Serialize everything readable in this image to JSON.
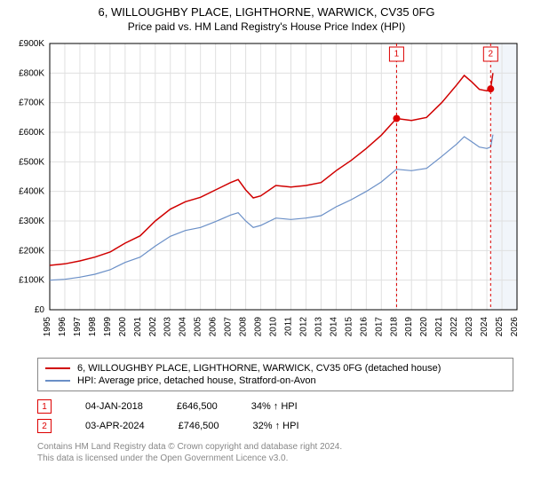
{
  "title": "6, WILLOUGHBY PLACE, LIGHTHORNE, WARWICK, CV35 0FG",
  "subtitle": "Price paid vs. HM Land Registry's House Price Index (HPI)",
  "chart": {
    "type": "line",
    "background_color": "#ffffff",
    "grid_color": "#e0e0e0",
    "axis_color": "#000000",
    "font_size_axis": 10,
    "y": {
      "min": 0,
      "max": 900000,
      "step": 100000,
      "ticks": [
        "£0",
        "£100K",
        "£200K",
        "£300K",
        "£400K",
        "£500K",
        "£600K",
        "£700K",
        "£800K",
        "£900K"
      ],
      "tick_values": [
        0,
        100000,
        200000,
        300000,
        400000,
        500000,
        600000,
        700000,
        800000,
        900000
      ]
    },
    "x": {
      "min": 1995,
      "max": 2026,
      "ticks": [
        1995,
        1996,
        1997,
        1998,
        1999,
        2000,
        2001,
        2002,
        2003,
        2004,
        2005,
        2006,
        2007,
        2008,
        2009,
        2010,
        2011,
        2012,
        2013,
        2014,
        2015,
        2016,
        2017,
        2018,
        2019,
        2020,
        2021,
        2022,
        2023,
        2024,
        2025,
        2026
      ]
    },
    "band": {
      "start": 2024.25,
      "end": 2026,
      "color": "#e8eef7"
    },
    "series": [
      {
        "id": "price_paid",
        "label": "6, WILLOUGHBY PLACE, LIGHTHORNE, WARWICK, CV35 0FG (detached house)",
        "color": "#d00000",
        "width": 1.5,
        "points": [
          [
            1995,
            150000
          ],
          [
            1996,
            155000
          ],
          [
            1997,
            165000
          ],
          [
            1998,
            178000
          ],
          [
            1999,
            195000
          ],
          [
            2000,
            225000
          ],
          [
            2001,
            250000
          ],
          [
            2002,
            300000
          ],
          [
            2003,
            340000
          ],
          [
            2004,
            365000
          ],
          [
            2005,
            380000
          ],
          [
            2006,
            405000
          ],
          [
            2007,
            430000
          ],
          [
            2007.5,
            440000
          ],
          [
            2008,
            405000
          ],
          [
            2008.5,
            378000
          ],
          [
            2009,
            385000
          ],
          [
            2010,
            420000
          ],
          [
            2011,
            415000
          ],
          [
            2012,
            420000
          ],
          [
            2013,
            430000
          ],
          [
            2014,
            470000
          ],
          [
            2015,
            505000
          ],
          [
            2016,
            545000
          ],
          [
            2017,
            590000
          ],
          [
            2018,
            646500
          ],
          [
            2019,
            640000
          ],
          [
            2020,
            650000
          ],
          [
            2021,
            700000
          ],
          [
            2022,
            760000
          ],
          [
            2022.5,
            792000
          ],
          [
            2023,
            770000
          ],
          [
            2023.5,
            745000
          ],
          [
            2024,
            740000
          ],
          [
            2024.25,
            746500
          ],
          [
            2024.4,
            800000
          ]
        ]
      },
      {
        "id": "hpi",
        "label": "HPI: Average price, detached house, Stratford-on-Avon",
        "color": "#6a8fc7",
        "width": 1.2,
        "points": [
          [
            1995,
            100000
          ],
          [
            1996,
            103000
          ],
          [
            1997,
            110000
          ],
          [
            1998,
            120000
          ],
          [
            1999,
            135000
          ],
          [
            2000,
            160000
          ],
          [
            2001,
            178000
          ],
          [
            2002,
            215000
          ],
          [
            2003,
            248000
          ],
          [
            2004,
            268000
          ],
          [
            2005,
            278000
          ],
          [
            2006,
            298000
          ],
          [
            2007,
            320000
          ],
          [
            2007.5,
            328000
          ],
          [
            2008,
            300000
          ],
          [
            2008.5,
            278000
          ],
          [
            2009,
            285000
          ],
          [
            2010,
            310000
          ],
          [
            2011,
            305000
          ],
          [
            2012,
            310000
          ],
          [
            2013,
            318000
          ],
          [
            2014,
            348000
          ],
          [
            2015,
            372000
          ],
          [
            2016,
            400000
          ],
          [
            2017,
            432000
          ],
          [
            2018,
            475000
          ],
          [
            2019,
            470000
          ],
          [
            2020,
            478000
          ],
          [
            2021,
            518000
          ],
          [
            2022,
            560000
          ],
          [
            2022.5,
            585000
          ],
          [
            2023,
            568000
          ],
          [
            2023.5,
            550000
          ],
          [
            2024,
            545000
          ],
          [
            2024.25,
            550000
          ],
          [
            2024.4,
            592000
          ]
        ]
      }
    ],
    "markers": [
      {
        "n": "1",
        "year": 2018.01,
        "value": 646500
      },
      {
        "n": "2",
        "year": 2024.25,
        "value": 746500
      }
    ]
  },
  "legend": {
    "items": [
      {
        "color": "#d00000",
        "label_path": "chart.series.0.label"
      },
      {
        "color": "#6a8fc7",
        "label_path": "chart.series.1.label"
      }
    ]
  },
  "marker_table": [
    {
      "n": "1",
      "date": "04-JAN-2018",
      "price": "£646,500",
      "delta": "34% ↑ HPI"
    },
    {
      "n": "2",
      "date": "03-APR-2024",
      "price": "£746,500",
      "delta": "32% ↑ HPI"
    }
  ],
  "footer_line1": "Contains HM Land Registry data © Crown copyright and database right 2024.",
  "footer_line2": "This data is licensed under the Open Government Licence v3.0.",
  "colors": {
    "marker_border": "#d00000",
    "footer_text": "#888888"
  }
}
